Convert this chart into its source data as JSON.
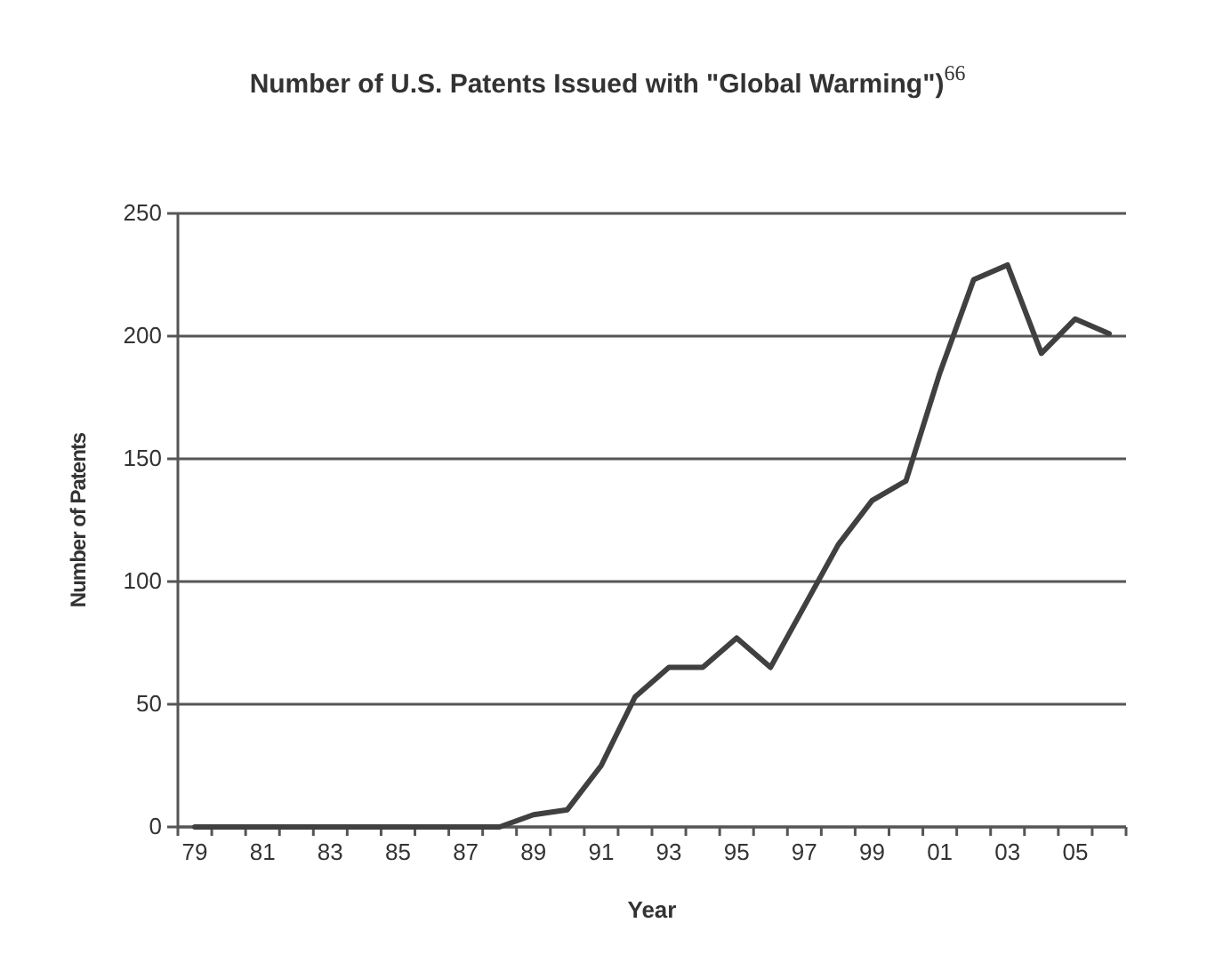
{
  "chart_data": {
    "type": "line",
    "title": "Number of U.S. Patents Issued with \"Global Warming\")$^{66}$",
    "xlabel": "Year",
    "ylabel": "Number of Patents",
    "categories": [
      "79",
      null,
      "81",
      null,
      "83",
      null,
      "85",
      null,
      "87",
      null,
      "89",
      null,
      "91",
      null,
      "93",
      null,
      "95",
      null,
      "97",
      null,
      "99",
      null,
      "01",
      null,
      "03",
      null,
      "05",
      null
    ],
    "series": [
      {
        "color": "#404040",
        "values": [
          0,
          0,
          0,
          0,
          0,
          0,
          0,
          0,
          0,
          0,
          5,
          7,
          25,
          53,
          65,
          65,
          77,
          65,
          90,
          115,
          133,
          141,
          185,
          223,
          229,
          193,
          207,
          201
        ]
      }
    ],
    "ylim": [
      0,
      250
    ],
    "yticks": [
      0,
      50,
      100,
      150,
      200,
      250
    ],
    "grid": "y",
    "marker": "none",
    "line_style": "solid"
  }
}
